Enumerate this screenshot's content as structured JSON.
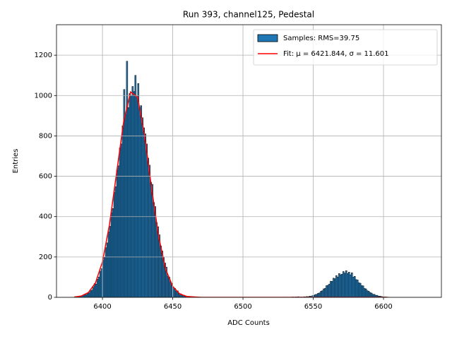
{
  "chart_data": {
    "type": "histogram",
    "title": "Run 393, channel125, Pedestal",
    "x_label": "ADC Counts",
    "y_label": "Entries",
    "xlim": [
      6367.3,
      6641.2
    ],
    "ylim": [
      0,
      1351
    ],
    "xticks": [
      6400,
      6450,
      6500,
      6550,
      6600
    ],
    "yticks": [
      0,
      200,
      400,
      600,
      800,
      1000,
      1200
    ],
    "grid": true,
    "legend": "upper right",
    "series": [
      {
        "name": "Samples: RMS=39.75",
        "type": "histogram",
        "color": "#1f77b4",
        "edgecolor": "#000000",
        "bins": [
          6380,
          6381,
          6382,
          6383,
          6384,
          6385,
          6386,
          6387,
          6388,
          6389,
          6390,
          6391,
          6392,
          6393,
          6394,
          6395,
          6396,
          6397,
          6398,
          6399,
          6400,
          6401,
          6402,
          6403,
          6404,
          6405,
          6406,
          6407,
          6408,
          6409,
          6410,
          6411,
          6412,
          6413,
          6414,
          6415,
          6416,
          6417,
          6418,
          6419,
          6420,
          6421,
          6422,
          6423,
          6424,
          6425,
          6426,
          6427,
          6428,
          6429,
          6430,
          6431,
          6432,
          6433,
          6434,
          6435,
          6436,
          6437,
          6438,
          6439,
          6440,
          6441,
          6442,
          6443,
          6444,
          6445,
          6446,
          6447,
          6448,
          6449,
          6450,
          6451,
          6452,
          6453,
          6454,
          6455,
          6456,
          6457,
          6458,
          6459,
          6460,
          6461,
          6462,
          6463,
          6464,
          6465,
          6466,
          6467,
          6468,
          6469,
          6470,
          6471,
          6472,
          6473,
          6474,
          6475,
          6476,
          6477,
          6478,
          6479,
          6480,
          6481,
          6482,
          6483,
          6484,
          6485,
          6486,
          6487,
          6488,
          6489,
          6490,
          6491,
          6492,
          6493,
          6494,
          6495,
          6496,
          6497,
          6498,
          6499,
          6500,
          6501,
          6502,
          6503,
          6504,
          6505,
          6506,
          6507,
          6508,
          6509,
          6510,
          6511,
          6512,
          6513,
          6514,
          6515,
          6516,
          6517,
          6518,
          6519,
          6520,
          6521,
          6522,
          6523,
          6524,
          6525,
          6526,
          6527,
          6528,
          6529,
          6530,
          6531,
          6532,
          6533,
          6534,
          6535,
          6536,
          6537,
          6538,
          6539,
          6540,
          6541,
          6542,
          6543,
          6544,
          6545,
          6546,
          6547,
          6548,
          6549,
          6550,
          6551,
          6552,
          6553,
          6554,
          6555,
          6556,
          6557,
          6558,
          6559,
          6560,
          6561,
          6562,
          6563,
          6564,
          6565,
          6566,
          6567,
          6568,
          6569,
          6570,
          6571,
          6572,
          6573,
          6574,
          6575,
          6576,
          6577,
          6578,
          6579,
          6580,
          6581,
          6582,
          6583,
          6584,
          6585,
          6586,
          6587,
          6588,
          6589,
          6590,
          6591,
          6592,
          6593,
          6594,
          6595,
          6596,
          6597,
          6598,
          6599,
          6600,
          6601,
          6602,
          6603,
          6604,
          6605
        ],
        "values": [
          2,
          1,
          3,
          5,
          4,
          8,
          10,
          12,
          14,
          21,
          22,
          33,
          36,
          50,
          68,
          66,
          90,
          101,
          130,
          142,
          183,
          198,
          246,
          270,
          325,
          352,
          420,
          440,
          520,
          548,
          630,
          652,
          740,
          760,
          850,
          1030,
          905,
          1170,
          940,
          1010,
          1000,
          1045,
          1020,
          1100,
          990,
          1060,
          930,
          950,
          890,
          840,
          810,
          760,
          690,
          655,
          570,
          560,
          470,
          450,
          370,
          350,
          310,
          255,
          230,
          200,
          170,
          150,
          105,
          100,
          75,
          70,
          50,
          45,
          30,
          32,
          20,
          18,
          12,
          11,
          7,
          6,
          4,
          5,
          3,
          2,
          2,
          1,
          1,
          2,
          0,
          1,
          1,
          0,
          0,
          1,
          0,
          0,
          0,
          1,
          0,
          0,
          0,
          0,
          1,
          0,
          0,
          0,
          0,
          0,
          0,
          0,
          0,
          0,
          0,
          0,
          1,
          0,
          0,
          0,
          0,
          0,
          0,
          0,
          0,
          0,
          0,
          0,
          0,
          1,
          0,
          0,
          0,
          0,
          0,
          0,
          0,
          0,
          0,
          0,
          0,
          0,
          0,
          0,
          1,
          0,
          0,
          0,
          0,
          0,
          1,
          0,
          0,
          1,
          0,
          1,
          1,
          2,
          1,
          2,
          2,
          3,
          1,
          2,
          1,
          3,
          2,
          4,
          3,
          6,
          5,
          8,
          10,
          14,
          15,
          20,
          22,
          30,
          33,
          42,
          45,
          58,
          60,
          66,
          80,
          79,
          95,
          92,
          108,
          100,
          118,
          112,
          115,
          128,
          120,
          132,
          118,
          125,
          112,
          122,
          100,
          104,
          88,
          86,
          72,
          70,
          58,
          57,
          44,
          42,
          33,
          30,
          24,
          21,
          15,
          15,
          10,
          10,
          6,
          6,
          4,
          3,
          2,
          2,
          1,
          1,
          0
        ]
      },
      {
        "name": "Fit: μ = 6421.844, σ = 11.601",
        "type": "line",
        "color": "#ff0000",
        "x": [
          6380,
          6385,
          6390,
          6395,
          6400,
          6405,
          6410,
          6415,
          6420,
          6425,
          6430,
          6435,
          6440,
          6445,
          6450,
          6455,
          6460,
          6470,
          6480,
          6500,
          6520,
          6540,
          6560,
          6580,
          6600,
          6603
        ],
        "values": [
          1.6,
          6.7,
          24,
          71,
          176,
          361,
          614,
          867,
          1018,
          992,
          802,
          539,
          301,
          139,
          54,
          17,
          4.5,
          0.1,
          0,
          0,
          0,
          0,
          0,
          0,
          0,
          0
        ]
      }
    ]
  }
}
